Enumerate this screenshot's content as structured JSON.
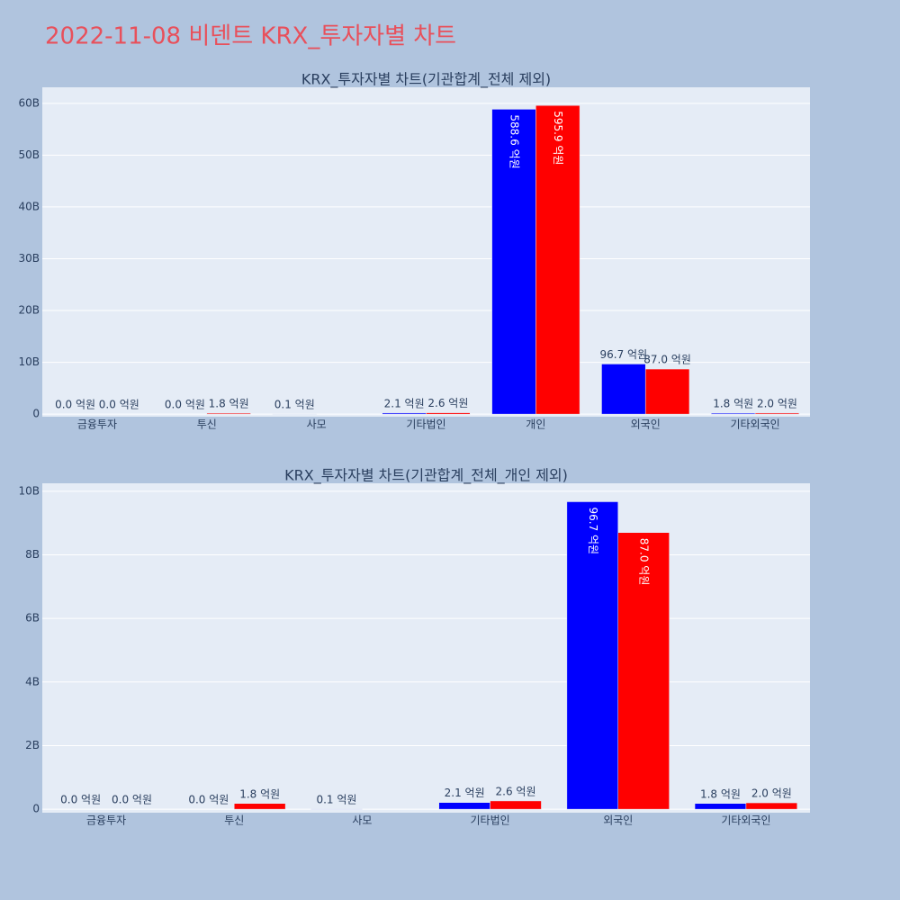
{
  "title": "2022-11-08 비덴트 KRX_투자자별 차트",
  "chart_data": [
    {
      "type": "bar",
      "title": "KRX_투자자별 차트(기관합계_전체 제외)",
      "categories": [
        "금융투자",
        "투신",
        "사모",
        "기타법인",
        "개인",
        "외국인",
        "기타외국인"
      ],
      "series": [
        {
          "color": "#0000ff",
          "values": [
            0,
            0,
            10000000,
            210000000,
            58860000000,
            9670000000,
            180000000
          ],
          "value_labels": [
            "0.0 억원",
            "0.0 억원",
            "0.1 억원",
            "2.1 억원",
            "588.6 억원",
            "96.7 억원",
            "1.8 억원"
          ]
        },
        {
          "color": "#ff0000",
          "values": [
            0,
            180000000,
            null,
            260000000,
            59590000000,
            8700000000,
            200000000
          ],
          "value_labels": [
            "0.0 억원",
            "1.8 억원",
            null,
            "2.6 억원",
            "595.9 억원",
            "87.0 억원",
            "2.0 억원"
          ]
        }
      ],
      "ylim": [
        -500000000,
        63100000000
      ],
      "yticks": [
        0,
        {
          "value": 10000000000,
          "label": "10B"
        },
        {
          "value": 20000000000,
          "label": "20B"
        },
        {
          "value": 30000000000,
          "label": "30B"
        },
        {
          "value": 40000000000,
          "label": "40B"
        },
        {
          "value": 50000000000,
          "label": "50B"
        },
        {
          "value": 60000000000,
          "label": "60B"
        }
      ],
      "grid": true
    },
    {
      "type": "bar",
      "title": "KRX_투자자별 차트(기관합계_전체_개인 제외)",
      "categories": [
        "금융투자",
        "투신",
        "사모",
        "기타법인",
        "외국인",
        "기타외국인"
      ],
      "series": [
        {
          "color": "#0000ff",
          "values": [
            0,
            0,
            10000000,
            210000000,
            9670000000,
            180000000
          ],
          "value_labels": [
            "0.0 억원",
            "0.0 억원",
            "0.1 억원",
            "2.1 억원",
            "96.7 억원",
            "1.8 억원"
          ]
        },
        {
          "color": "#ff0000",
          "values": [
            0,
            180000000,
            null,
            260000000,
            8700000000,
            200000000
          ],
          "value_labels": [
            "0.0 억원",
            "1.8 억원",
            null,
            "2.6 억원",
            "87.0 억원",
            "2.0 억원"
          ]
        }
      ],
      "ylim": [
        -110000000,
        10250000000
      ],
      "yticks": [
        0,
        {
          "value": 2000000000,
          "label": "2B"
        },
        {
          "value": 4000000000,
          "label": "4B"
        },
        {
          "value": 6000000000,
          "label": "6B"
        },
        {
          "value": 8000000000,
          "label": "8B"
        },
        {
          "value": 10000000000,
          "label": "10B"
        }
      ],
      "grid": true
    }
  ]
}
